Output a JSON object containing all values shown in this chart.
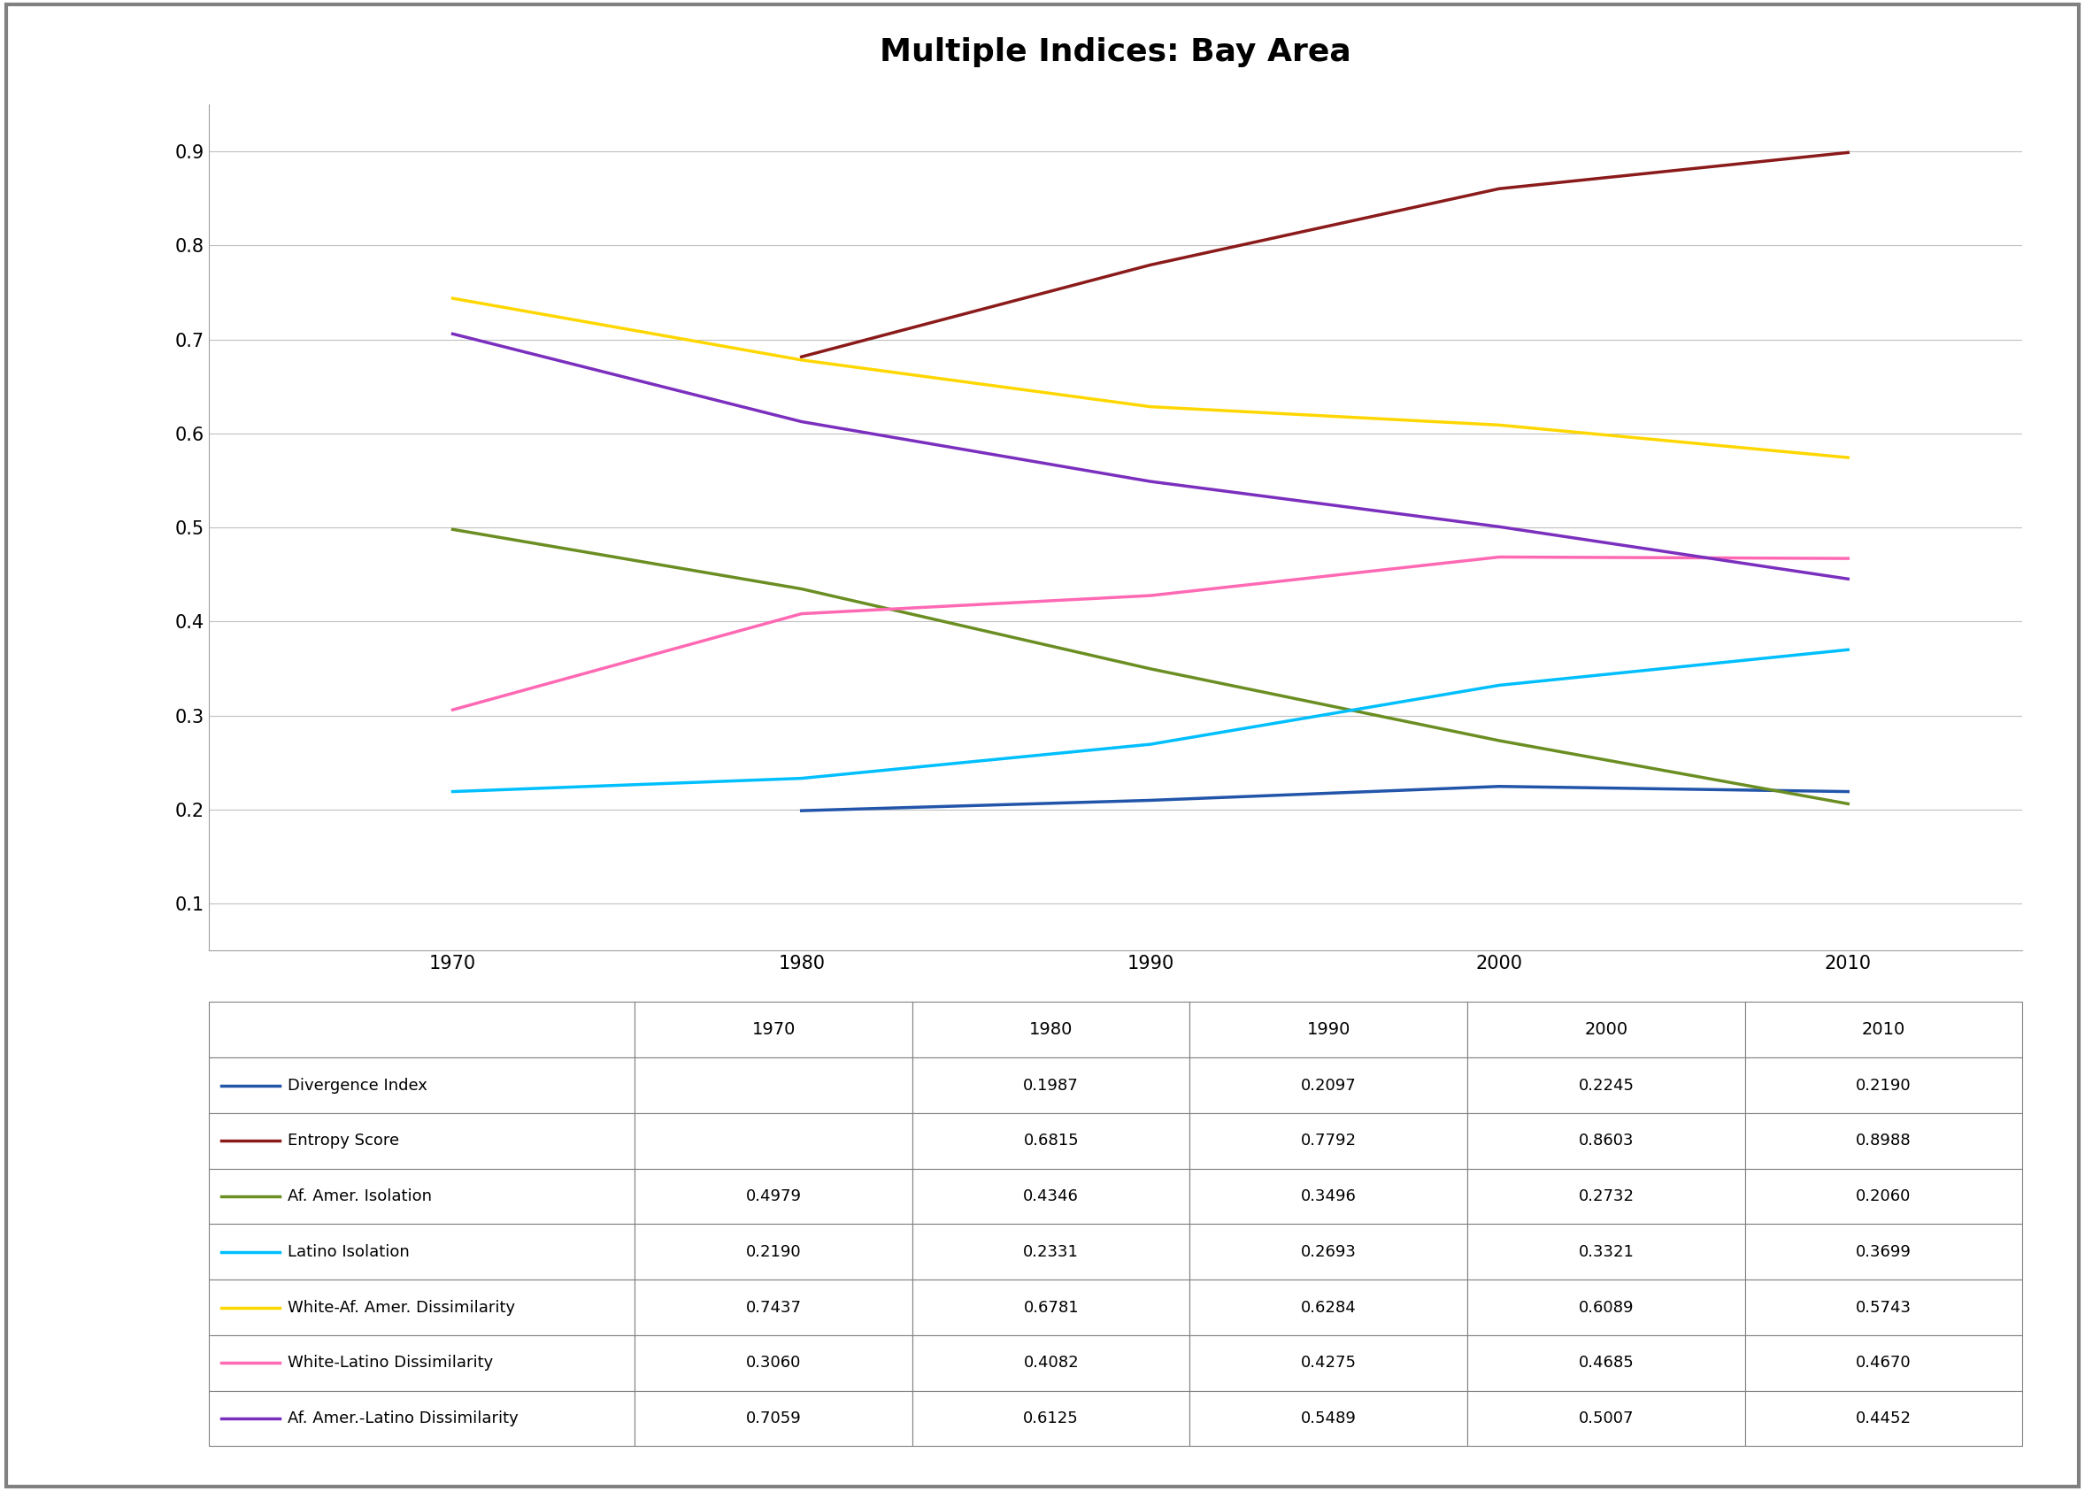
{
  "title": "Multiple Indices: Bay Area",
  "years": [
    1970,
    1980,
    1990,
    2000,
    2010
  ],
  "series": [
    {
      "label": "Divergence Index",
      "color": "#2255AA",
      "values": [
        null,
        0.1987,
        0.2097,
        0.2245,
        0.219
      ],
      "linewidth": 2.5
    },
    {
      "label": "Entropy Score",
      "color": "#8B1A1A",
      "values": [
        null,
        0.6815,
        0.7792,
        0.8603,
        0.8988
      ],
      "linewidth": 2.5
    },
    {
      "label": "Af. Amer. Isolation",
      "color": "#6B8E23",
      "values": [
        0.4979,
        0.4346,
        0.3496,
        0.2732,
        0.206
      ],
      "linewidth": 2.5
    },
    {
      "label": "Latino Isolation",
      "color": "#00BFFF",
      "values": [
        0.219,
        0.2331,
        0.2693,
        0.3321,
        0.3699
      ],
      "linewidth": 2.5
    },
    {
      "label": "White-Af. Amer. Dissimilarity",
      "color": "#FFD700",
      "values": [
        0.7437,
        0.6781,
        0.6284,
        0.6089,
        0.5743
      ],
      "linewidth": 2.5
    },
    {
      "label": "White-Latino Dissimilarity",
      "color": "#FF69B4",
      "values": [
        0.306,
        0.4082,
        0.4275,
        0.4685,
        0.467
      ],
      "linewidth": 2.5
    },
    {
      "label": "Af. Amer.-Latino Dissimilarity",
      "color": "#7B2FBE",
      "values": [
        0.7059,
        0.6125,
        0.5489,
        0.5007,
        0.4452
      ],
      "linewidth": 2.5
    }
  ],
  "table_col_headers": [
    "",
    "1970",
    "1980",
    "1990",
    "2000",
    "2010"
  ],
  "ylim": [
    0.05,
    0.95
  ],
  "yticks": [
    0.1,
    0.2,
    0.3,
    0.4,
    0.5,
    0.6,
    0.7,
    0.8,
    0.9
  ],
  "background_color": "#FFFFFF",
  "grid_color": "#C0C0C0",
  "title_fontsize": 26,
  "tick_fontsize": 15,
  "table_fontsize": 13,
  "outer_border_color": "#808080",
  "table_border_color": "#808080"
}
